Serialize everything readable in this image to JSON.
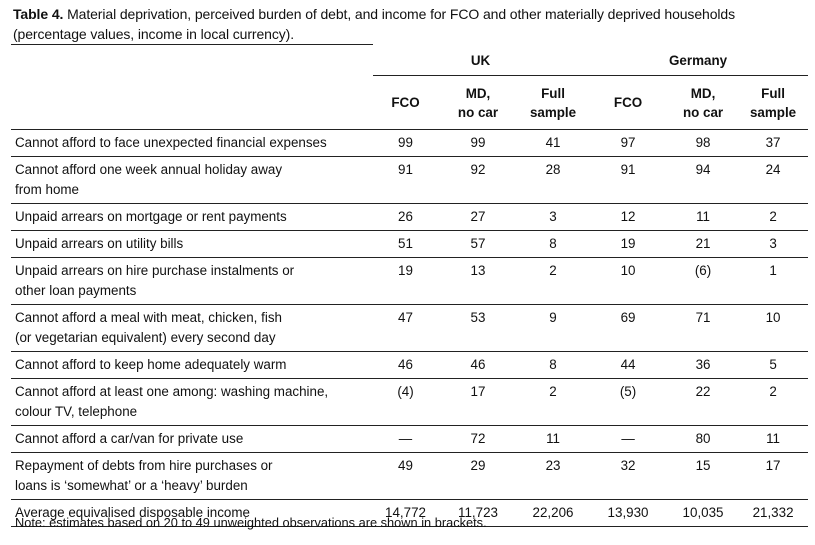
{
  "caption": {
    "label": "Table 4.",
    "text": " Material deprivation, perceived burden of debt, and income for FCO and other materially deprived households (percentage values, income in local currency)."
  },
  "groups": [
    "UK",
    "Germany"
  ],
  "columns": [
    [
      "FCO"
    ],
    [
      "MD,",
      "no car"
    ],
    [
      "Full",
      "sample"
    ],
    [
      "FCO"
    ],
    [
      "MD,",
      "no car"
    ],
    [
      "Full",
      "sample"
    ]
  ],
  "rows": [
    {
      "label": [
        "Cannot afford to face unexpected financial expenses"
      ],
      "values": [
        "99",
        "99",
        "41",
        "97",
        "98",
        "37"
      ]
    },
    {
      "label": [
        "Cannot afford one week annual holiday away",
        "from home"
      ],
      "values": [
        "91",
        "92",
        "28",
        "91",
        "94",
        "24"
      ]
    },
    {
      "label": [
        "Unpaid arrears on mortgage or rent payments"
      ],
      "values": [
        "26",
        "27",
        "3",
        "12",
        "11",
        "2"
      ]
    },
    {
      "label": [
        "Unpaid arrears on utility bills"
      ],
      "values": [
        "51",
        "57",
        "8",
        "19",
        "21",
        "3"
      ]
    },
    {
      "label": [
        "Unpaid arrears on hire purchase instalments or",
        "other loan payments"
      ],
      "values": [
        "19",
        "13",
        "2",
        "10",
        "(6)",
        "1"
      ]
    },
    {
      "label": [
        "Cannot afford a meal with meat, chicken, fish",
        "(or vegetarian equivalent) every second day"
      ],
      "values": [
        "47",
        "53",
        "9",
        "69",
        "71",
        "10"
      ]
    },
    {
      "label": [
        "Cannot afford to keep home adequately warm"
      ],
      "values": [
        "46",
        "46",
        "8",
        "44",
        "36",
        "5"
      ]
    },
    {
      "label": [
        "Cannot afford at least one among: washing machine,",
        "colour TV, telephone"
      ],
      "values": [
        "(4)",
        "17",
        "2",
        "(5)",
        "22",
        "2"
      ]
    },
    {
      "label": [
        "Cannot afford a car/van for private use"
      ],
      "values": [
        "—",
        "72",
        "11",
        "—",
        "80",
        "11"
      ]
    },
    {
      "label": [
        "Repayment of debts from hire purchases or",
        "loans is ‘somewhat’ or a ‘heavy’ burden"
      ],
      "values": [
        "49",
        "29",
        "23",
        "32",
        "15",
        "17"
      ]
    },
    {
      "label": [
        "Average equivalised disposable income"
      ],
      "values": [
        "14,772",
        "11,723",
        "22,206",
        "13,930",
        "10,035",
        "21,332"
      ]
    }
  ],
  "note": "Note: estimates based on 20 to 49 unweighted observations are shown in brackets."
}
